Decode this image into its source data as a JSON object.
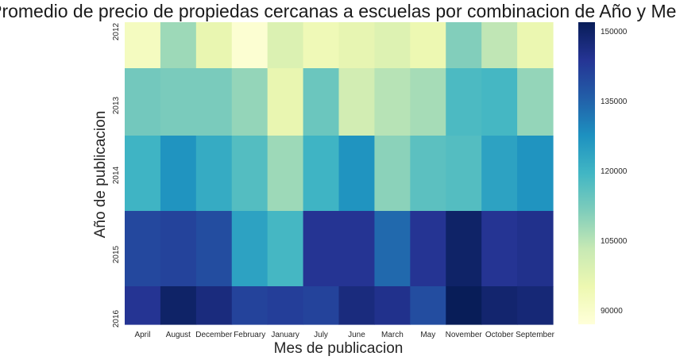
{
  "chart_data": {
    "type": "heatmap",
    "title": "Promedio de precio de propiedas cercanas a escuelas por combinacion de Año y Mes",
    "xlabel": "Mes de publicacion",
    "ylabel": "Año de publicacion",
    "x_categories": [
      "April",
      "August",
      "December",
      "February",
      "January",
      "July",
      "June",
      "March",
      "May",
      "November",
      "October",
      "September"
    ],
    "y_categories": [
      "2012",
      "2013",
      "2014",
      "2015",
      "2016"
    ],
    "values": [
      [
        92000,
        108000,
        96000,
        88500,
        99000,
        94000,
        96500,
        98500,
        95000,
        111000,
        104000,
        95500
      ],
      [
        113000,
        112000,
        112000,
        109000,
        96000,
        114000,
        101000,
        105000,
        107000,
        118000,
        119000,
        109000
      ],
      [
        120000,
        127000,
        122000,
        117000,
        108000,
        120000,
        127000,
        110000,
        116000,
        117000,
        124000,
        127000
      ],
      [
        140000,
        141000,
        139000,
        124000,
        119000,
        144000,
        144000,
        134000,
        144000,
        150000,
        144000,
        145000
      ],
      [
        144000,
        150000,
        147000,
        141000,
        142000,
        141000,
        147000,
        145000,
        139000,
        153000,
        149000,
        148000
      ]
    ],
    "colorbar": {
      "min": 87000,
      "max": 152000,
      "ticks": [
        90000,
        105000,
        120000,
        135000,
        150000
      ]
    },
    "colormap": "YlGnBu"
  }
}
